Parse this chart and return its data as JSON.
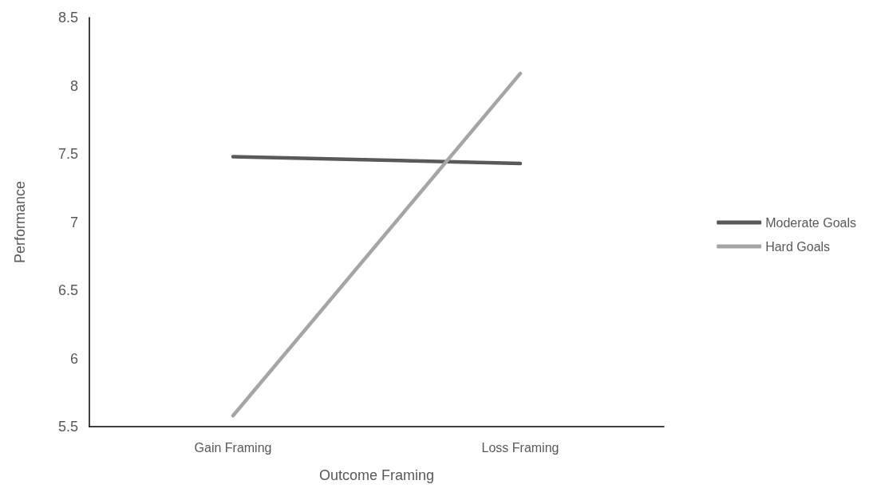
{
  "chart_data": {
    "type": "line",
    "xlabel": "Outcome Framing",
    "ylabel": "Performance",
    "categories": [
      "Gain Framing",
      "Loss Framing"
    ],
    "series": [
      {
        "name": "Moderate Goals",
        "color": "#595959",
        "values": [
          7.48,
          7.43
        ]
      },
      {
        "name": "Hard Goals",
        "color": "#a5a5a5",
        "values": [
          5.58,
          8.09
        ]
      }
    ],
    "ylim": [
      5.5,
      8.5
    ],
    "yticks": [
      5.5,
      6,
      6.5,
      7,
      7.5,
      8,
      8.5
    ],
    "grid": false,
    "legend": "right",
    "marker": "none",
    "line_style": "solid"
  }
}
